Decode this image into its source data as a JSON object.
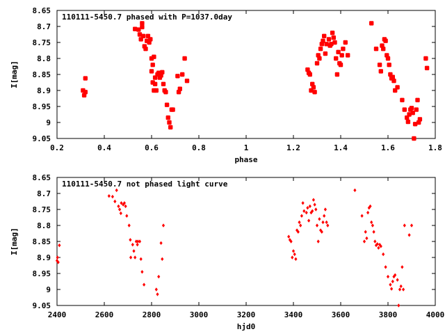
{
  "colors": {
    "points": "#ff0000",
    "axes": "#000000",
    "background": "#ffffff"
  },
  "chart_data": [
    {
      "type": "scatter",
      "title": "110111-5450.7 phased with P=1037.0day",
      "xlabel": "phase",
      "ylabel": "I[mag]",
      "xlim": [
        0.2,
        1.8
      ],
      "ylim": [
        8.65,
        9.05
      ],
      "y_inverted": true,
      "grid": false,
      "legend": "none",
      "xticks": [
        0.2,
        0.4,
        0.6,
        0.8,
        1,
        1.2,
        1.4,
        1.6,
        1.8
      ],
      "xtick_labels": [
        "0.2",
        "0.4",
        "0.6",
        "0.8",
        "1",
        "1.2",
        "1.4",
        "1.6",
        "1.8"
      ],
      "yticks": [
        8.65,
        8.7,
        8.75,
        8.8,
        8.85,
        8.9,
        8.95,
        9,
        9.05
      ],
      "ytick_labels": [
        "8.65",
        "8.7",
        "8.75",
        "8.8",
        "8.85",
        "8.9",
        "8.95",
        "9",
        "9.05"
      ],
      "marker": "large",
      "series": [
        {
          "x": [
            0.31,
            0.315,
            0.32,
            0.32,
            0.53,
            0.545,
            0.55,
            0.555,
            0.56,
            0.56,
            0.565,
            0.57,
            0.575,
            0.58,
            0.585,
            0.59,
            0.595,
            0.6,
            0.6,
            0.605,
            0.605,
            0.61,
            0.61,
            0.615,
            0.615,
            0.62,
            0.625,
            0.63,
            0.635,
            0.64,
            0.645,
            0.65,
            0.655,
            0.66,
            0.665,
            0.67,
            0.675,
            0.68,
            0.685,
            0.69,
            0.71,
            0.715,
            0.72,
            0.73,
            0.74,
            0.75,
            1.26,
            1.265,
            1.27,
            1.275,
            1.28,
            1.285,
            1.29,
            1.3,
            1.305,
            1.31,
            1.315,
            1.32,
            1.325,
            1.33,
            1.335,
            1.34,
            1.35,
            1.355,
            1.36,
            1.365,
            1.37,
            1.375,
            1.38,
            1.385,
            1.39,
            1.395,
            1.4,
            1.405,
            1.41,
            1.42,
            1.43,
            1.53,
            1.55,
            1.565,
            1.57,
            1.575,
            1.58,
            1.585,
            1.59,
            1.595,
            1.6,
            1.605,
            1.61,
            1.615,
            1.62,
            1.625,
            1.63,
            1.64,
            1.66,
            1.67,
            1.68,
            1.685,
            1.69,
            1.695,
            1.7,
            1.705,
            1.71,
            1.715,
            1.72,
            1.725,
            1.73,
            1.735,
            1.76,
            1.765
          ],
          "y": [
            8.9,
            8.915,
            8.905,
            8.862,
            8.708,
            8.71,
            8.725,
            8.74,
            8.69,
            8.702,
            8.73,
            8.762,
            8.77,
            8.745,
            8.73,
            8.75,
            8.74,
            8.8,
            8.84,
            8.82,
            8.875,
            8.9,
            8.795,
            8.86,
            8.88,
            8.9,
            8.85,
            8.845,
            8.86,
            8.853,
            8.843,
            8.88,
            8.9,
            8.905,
            8.945,
            8.985,
            9.0,
            9.015,
            8.96,
            8.96,
            8.855,
            8.905,
            8.895,
            8.85,
            8.8,
            8.87,
            8.835,
            8.845,
            8.85,
            8.9,
            8.88,
            8.89,
            8.905,
            8.815,
            8.79,
            8.8,
            8.77,
            8.755,
            8.745,
            8.73,
            8.785,
            8.755,
            8.74,
            8.76,
            8.755,
            8.72,
            8.735,
            8.75,
            8.8,
            8.85,
            8.78,
            8.815,
            8.82,
            8.79,
            8.77,
            8.75,
            8.79,
            8.69,
            8.77,
            8.82,
            8.84,
            8.76,
            8.77,
            8.74,
            8.745,
            8.79,
            8.8,
            8.82,
            8.85,
            8.862,
            8.858,
            8.87,
            8.9,
            8.89,
            8.93,
            8.96,
            8.985,
            8.998,
            8.975,
            8.96,
            8.955,
            8.97,
            9.05,
            9.005,
            8.96,
            8.93,
            9.0,
            8.99,
            8.8,
            8.83
          ]
        }
      ]
    },
    {
      "type": "scatter",
      "title": "110111-5450.7 not phased light curve",
      "xlabel": "hjd0",
      "ylabel": "I[mag]",
      "xlim": [
        2400,
        4000
      ],
      "ylim": [
        8.65,
        9.05
      ],
      "y_inverted": true,
      "grid": false,
      "legend": "none",
      "xticks": [
        2400,
        2600,
        2800,
        3000,
        3200,
        3400,
        3600,
        3800,
        4000
      ],
      "xtick_labels": [
        "2400",
        "2600",
        "2800",
        "3000",
        "3200",
        "3400",
        "3600",
        "3800",
        "4000"
      ],
      "yticks": [
        8.65,
        8.7,
        8.75,
        8.8,
        8.85,
        8.9,
        8.95,
        9,
        9.05
      ],
      "ytick_labels": [
        "8.65",
        "8.7",
        "8.75",
        "8.8",
        "8.85",
        "8.9",
        "8.95",
        "9",
        "9.05"
      ],
      "marker": "small",
      "series": [
        {
          "x": [
            2400,
            2402,
            2405,
            2410,
            2620,
            2635,
            2645,
            2652,
            2660,
            2665,
            2670,
            2672,
            2680,
            2685,
            2690,
            2695,
            2705,
            2710,
            2712,
            2720,
            2725,
            2730,
            2735,
            2740,
            2742,
            2750,
            2755,
            2760,
            2768,
            2820,
            2825,
            2830,
            2840,
            2845,
            2850,
            3380,
            3385,
            3390,
            3395,
            3400,
            3405,
            3410,
            3415,
            3420,
            3425,
            3430,
            3435,
            3440,
            3445,
            3455,
            3460,
            3465,
            3470,
            3475,
            3480,
            3485,
            3490,
            3495,
            3500,
            3505,
            3510,
            3515,
            3520,
            3525,
            3530,
            3535,
            3540,
            3545,
            3660,
            3690,
            3700,
            3705,
            3710,
            3715,
            3720,
            3725,
            3730,
            3735,
            3740,
            3745,
            3750,
            3755,
            3760,
            3765,
            3770,
            3780,
            3790,
            3800,
            3810,
            3815,
            3820,
            3825,
            3830,
            3840,
            3845,
            3850,
            3855,
            3860,
            3865,
            3870,
            3890,
            3900
          ],
          "y": [
            8.91,
            8.9,
            8.915,
            8.862,
            8.708,
            8.71,
            8.725,
            8.69,
            8.74,
            8.75,
            8.762,
            8.73,
            8.735,
            8.73,
            8.74,
            8.77,
            8.8,
            8.845,
            8.9,
            8.86,
            8.88,
            8.9,
            8.85,
            8.86,
            8.85,
            8.85,
            8.905,
            8.945,
            8.985,
            9.0,
            9.015,
            8.96,
            8.855,
            8.905,
            8.8,
            8.835,
            8.845,
            8.85,
            8.9,
            8.88,
            8.89,
            8.905,
            8.815,
            8.82,
            8.79,
            8.8,
            8.77,
            8.73,
            8.755,
            8.76,
            8.745,
            8.785,
            8.74,
            8.76,
            8.755,
            8.72,
            8.735,
            8.75,
            8.8,
            8.85,
            8.78,
            8.815,
            8.82,
            8.79,
            8.77,
            8.75,
            8.79,
            8.8,
            8.69,
            8.77,
            8.85,
            8.82,
            8.84,
            8.76,
            8.745,
            8.74,
            8.79,
            8.8,
            8.82,
            8.85,
            8.862,
            8.858,
            8.87,
            8.86,
            8.865,
            8.89,
            8.93,
            8.96,
            8.985,
            8.998,
            8.975,
            8.96,
            8.955,
            8.97,
            9.05,
            9.0,
            8.99,
            8.93,
            9.0,
            8.8,
            8.83,
            8.8
          ]
        }
      ]
    }
  ]
}
